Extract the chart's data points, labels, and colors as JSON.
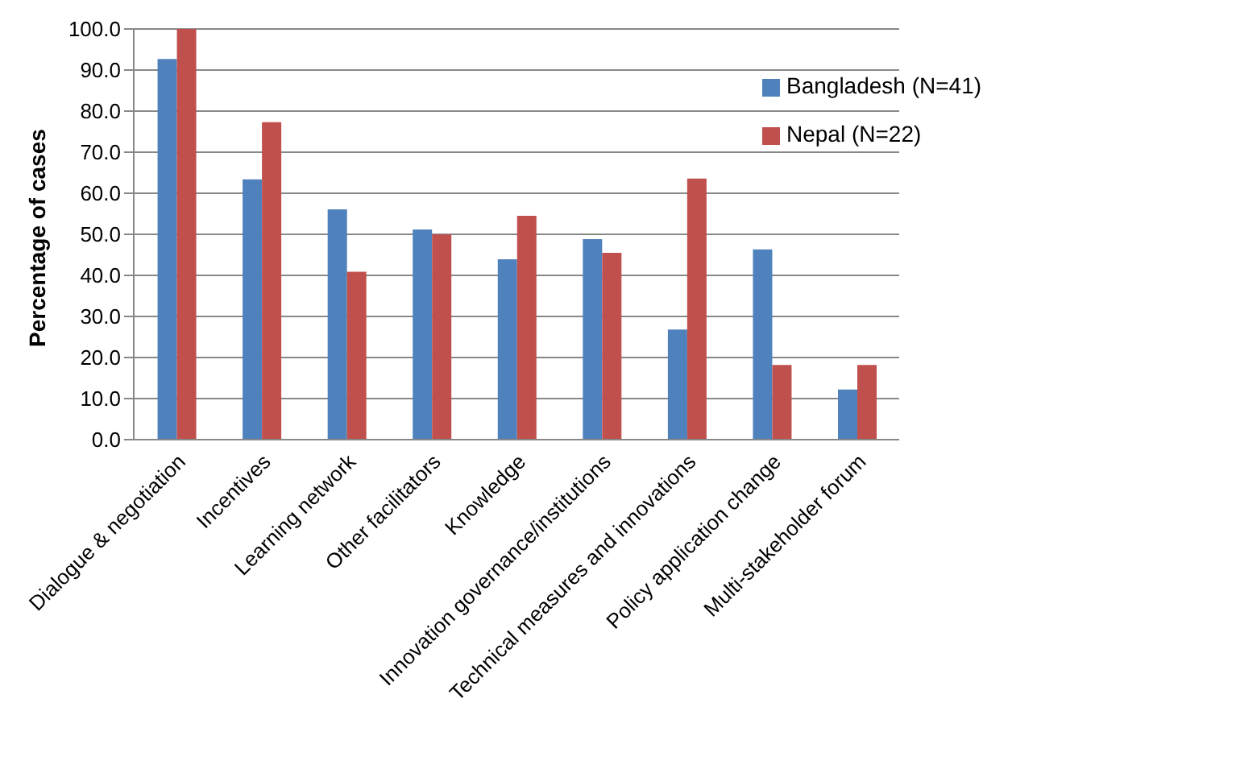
{
  "chart_data": {
    "type": "bar",
    "ylabel": "Percentage of cases",
    "categories": [
      "Dialogue & negotiation",
      "Incentives",
      "Learning network",
      "Other facilitators",
      "Knowledge",
      "Innovation governance/institutions",
      "Technical measures and innovations",
      "Policy application change",
      "Multi-stakeholder forum"
    ],
    "series": [
      {
        "name": "Bangladesh  (N=41)",
        "color": "#4f81bd",
        "values": [
          92.7,
          63.4,
          56.1,
          51.2,
          43.9,
          48.8,
          26.8,
          46.3,
          12.2
        ]
      },
      {
        "name": "Nepal (N=22)",
        "color": "#c0504d",
        "values": [
          100.0,
          77.3,
          40.9,
          50.0,
          54.5,
          45.5,
          63.6,
          18.2,
          18.2
        ]
      }
    ],
    "ylim": [
      0,
      100
    ],
    "yticks": [
      {
        "value": 0,
        "label": "0.0"
      },
      {
        "value": 10,
        "label": "10.0"
      },
      {
        "value": 20,
        "label": "20.0"
      },
      {
        "value": 30,
        "label": "30.0"
      },
      {
        "value": 40,
        "label": "40.0"
      },
      {
        "value": 50,
        "label": "50.0"
      },
      {
        "value": 60,
        "label": "60.0"
      },
      {
        "value": 70,
        "label": "70.0"
      },
      {
        "value": 80,
        "label": "80.0"
      },
      {
        "value": 90,
        "label": "90.0"
      },
      {
        "value": 100,
        "label": "100.0"
      }
    ],
    "grid": "y",
    "legend": "top right"
  }
}
